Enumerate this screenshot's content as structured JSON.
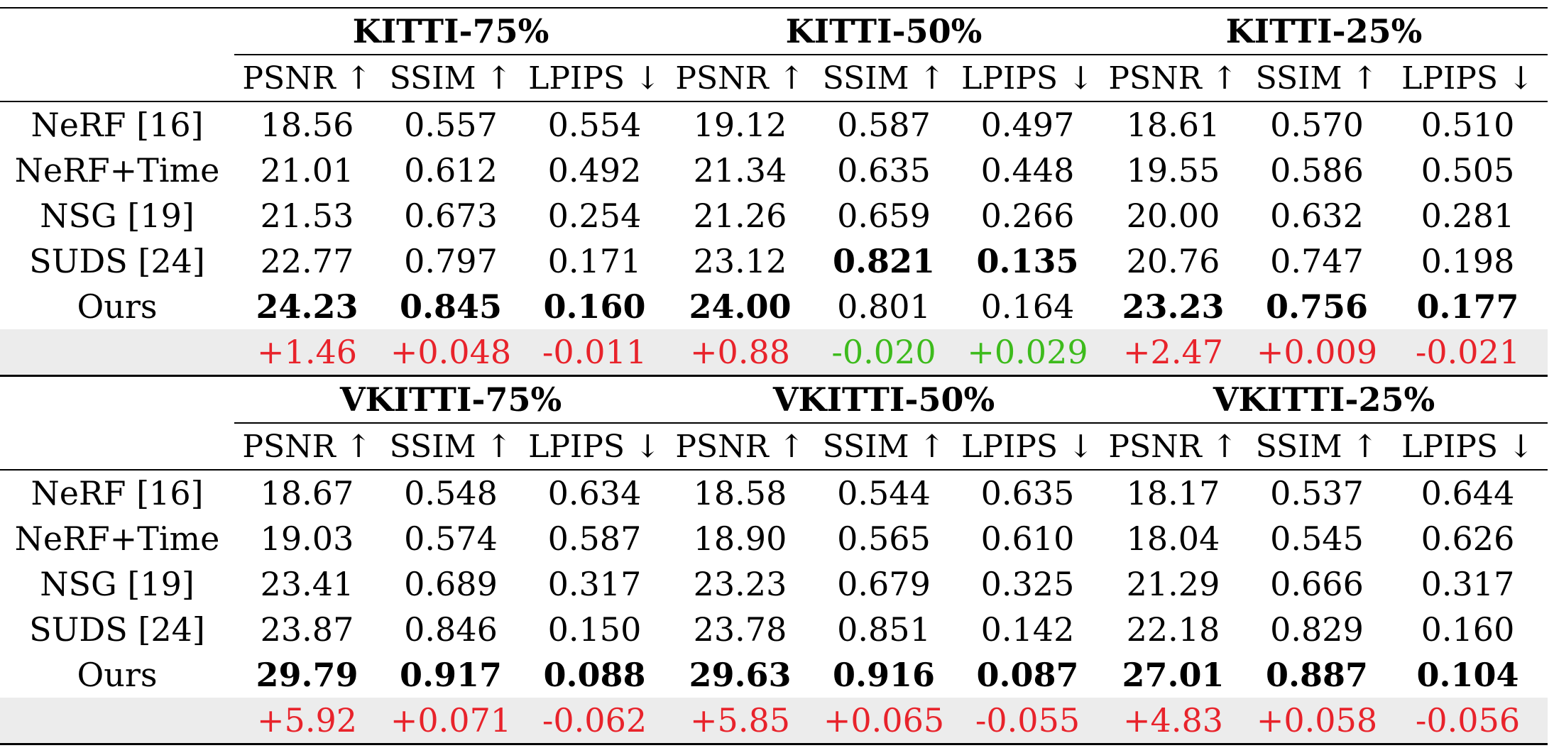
{
  "blocks": [
    {
      "datasets": [
        "KITTI-75%",
        "KITTI-50%",
        "KITTI-25%"
      ],
      "metrics": [
        "PSNR ↑",
        "SSIM ↑",
        "LPIPS ↓",
        "PSNR ↑",
        "SSIM ↑",
        "LPIPS ↓",
        "PSNR ↑",
        "SSIM ↑",
        "LPIPS ↓"
      ],
      "rows": [
        {
          "method": "NeRF [16]",
          "values": [
            "18.56",
            "0.557",
            "0.554",
            "19.12",
            "0.587",
            "0.497",
            "18.61",
            "0.570",
            "0.510"
          ],
          "bold": [
            false,
            false,
            false,
            false,
            false,
            false,
            false,
            false,
            false
          ]
        },
        {
          "method": "NeRF+Time",
          "values": [
            "21.01",
            "0.612",
            "0.492",
            "21.34",
            "0.635",
            "0.448",
            "19.55",
            "0.586",
            "0.505"
          ],
          "bold": [
            false,
            false,
            false,
            false,
            false,
            false,
            false,
            false,
            false
          ]
        },
        {
          "method": "NSG [19]",
          "values": [
            "21.53",
            "0.673",
            "0.254",
            "21.26",
            "0.659",
            "0.266",
            "20.00",
            "0.632",
            "0.281"
          ],
          "bold": [
            false,
            false,
            false,
            false,
            false,
            false,
            false,
            false,
            false
          ]
        },
        {
          "method": "SUDS [24]",
          "values": [
            "22.77",
            "0.797",
            "0.171",
            "23.12",
            "0.821",
            "0.135",
            "20.76",
            "0.747",
            "0.198"
          ],
          "bold": [
            false,
            false,
            false,
            false,
            true,
            true,
            false,
            false,
            false
          ]
        },
        {
          "method": "Ours",
          "values": [
            "24.23",
            "0.845",
            "0.160",
            "24.00",
            "0.801",
            "0.164",
            "23.23",
            "0.756",
            "0.177"
          ],
          "bold": [
            true,
            true,
            true,
            true,
            false,
            false,
            true,
            true,
            true
          ]
        }
      ],
      "diff": {
        "values": [
          "+1.46",
          "+0.048",
          "-0.011",
          "+0.88",
          "-0.020",
          "+0.029",
          "+2.47",
          "+0.009",
          "-0.021"
        ],
        "colors": [
          "#e8232b",
          "#e8232b",
          "#e8232b",
          "#e8232b",
          "#3dbb1c",
          "#3dbb1c",
          "#e8232b",
          "#e8232b",
          "#e8232b"
        ]
      }
    },
    {
      "datasets": [
        "VKITTI-75%",
        "VKITTI-50%",
        "VKITTI-25%"
      ],
      "metrics": [
        "PSNR ↑",
        "SSIM ↑",
        "LPIPS ↓",
        "PSNR ↑",
        "SSIM ↑",
        "LPIPS ↓",
        "PSNR ↑",
        "SSIM ↑",
        "LPIPS ↓"
      ],
      "rows": [
        {
          "method": "NeRF [16]",
          "values": [
            "18.67",
            "0.548",
            "0.634",
            "18.58",
            "0.544",
            "0.635",
            "18.17",
            "0.537",
            "0.644"
          ],
          "bold": [
            false,
            false,
            false,
            false,
            false,
            false,
            false,
            false,
            false
          ]
        },
        {
          "method": "NeRF+Time",
          "values": [
            "19.03",
            "0.574",
            "0.587",
            "18.90",
            "0.565",
            "0.610",
            "18.04",
            "0.545",
            "0.626"
          ],
          "bold": [
            false,
            false,
            false,
            false,
            false,
            false,
            false,
            false,
            false
          ]
        },
        {
          "method": "NSG [19]",
          "values": [
            "23.41",
            "0.689",
            "0.317",
            "23.23",
            "0.679",
            "0.325",
            "21.29",
            "0.666",
            "0.317"
          ],
          "bold": [
            false,
            false,
            false,
            false,
            false,
            false,
            false,
            false,
            false
          ]
        },
        {
          "method": "SUDS [24]",
          "values": [
            "23.87",
            "0.846",
            "0.150",
            "23.78",
            "0.851",
            "0.142",
            "22.18",
            "0.829",
            "0.160"
          ],
          "bold": [
            false,
            false,
            false,
            false,
            false,
            false,
            false,
            false,
            false
          ]
        },
        {
          "method": "Ours",
          "values": [
            "29.79",
            "0.917",
            "0.088",
            "29.63",
            "0.916",
            "0.087",
            "27.01",
            "0.887",
            "0.104"
          ],
          "bold": [
            true,
            true,
            true,
            true,
            true,
            true,
            true,
            true,
            true
          ]
        }
      ],
      "diff": {
        "values": [
          "+5.92",
          "+0.071",
          "-0.062",
          "+5.85",
          "+0.065",
          "-0.055",
          "+4.83",
          "+0.058",
          "-0.056"
        ],
        "colors": [
          "#e8232b",
          "#e8232b",
          "#e8232b",
          "#e8232b",
          "#e8232b",
          "#e8232b",
          "#e8232b",
          "#e8232b",
          "#e8232b"
        ]
      }
    }
  ]
}
